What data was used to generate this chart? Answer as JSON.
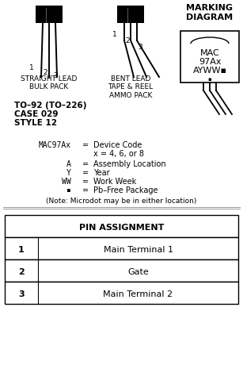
{
  "bg_color": "#ffffff",
  "straight_label": "STRAIGHT LEAD\nBULK PACK",
  "bent_label": "BENT LEAD\nTAPE & REEL\nAMMO PACK",
  "case_lines": [
    "TO–92 (TO–226)",
    "CASE 029",
    "STYLE 12"
  ],
  "marking_title": "MARKING\nDIAGRAM",
  "marking_text": [
    "MAC",
    "97Ax",
    "AYWW▪"
  ],
  "marking_dot": "▪",
  "legend_items": [
    [
      "MAC97Ax",
      "=",
      "Device Code"
    ],
    [
      "",
      "",
      "x = 4, 6, or 8"
    ],
    [
      "A",
      "=",
      "Assembly Location"
    ],
    [
      "Y",
      "=",
      "Year"
    ],
    [
      "WW",
      "=",
      "Work Week"
    ],
    [
      "▪",
      "=",
      "Pb–Free Package"
    ]
  ],
  "note": "(Note: Microdot may be in either location)",
  "table_title": "PIN ASSIGNMENT",
  "table_rows": [
    [
      "1",
      "Main Terminal 1"
    ],
    [
      "2",
      "Gate"
    ],
    [
      "3",
      "Main Terminal 2"
    ]
  ]
}
